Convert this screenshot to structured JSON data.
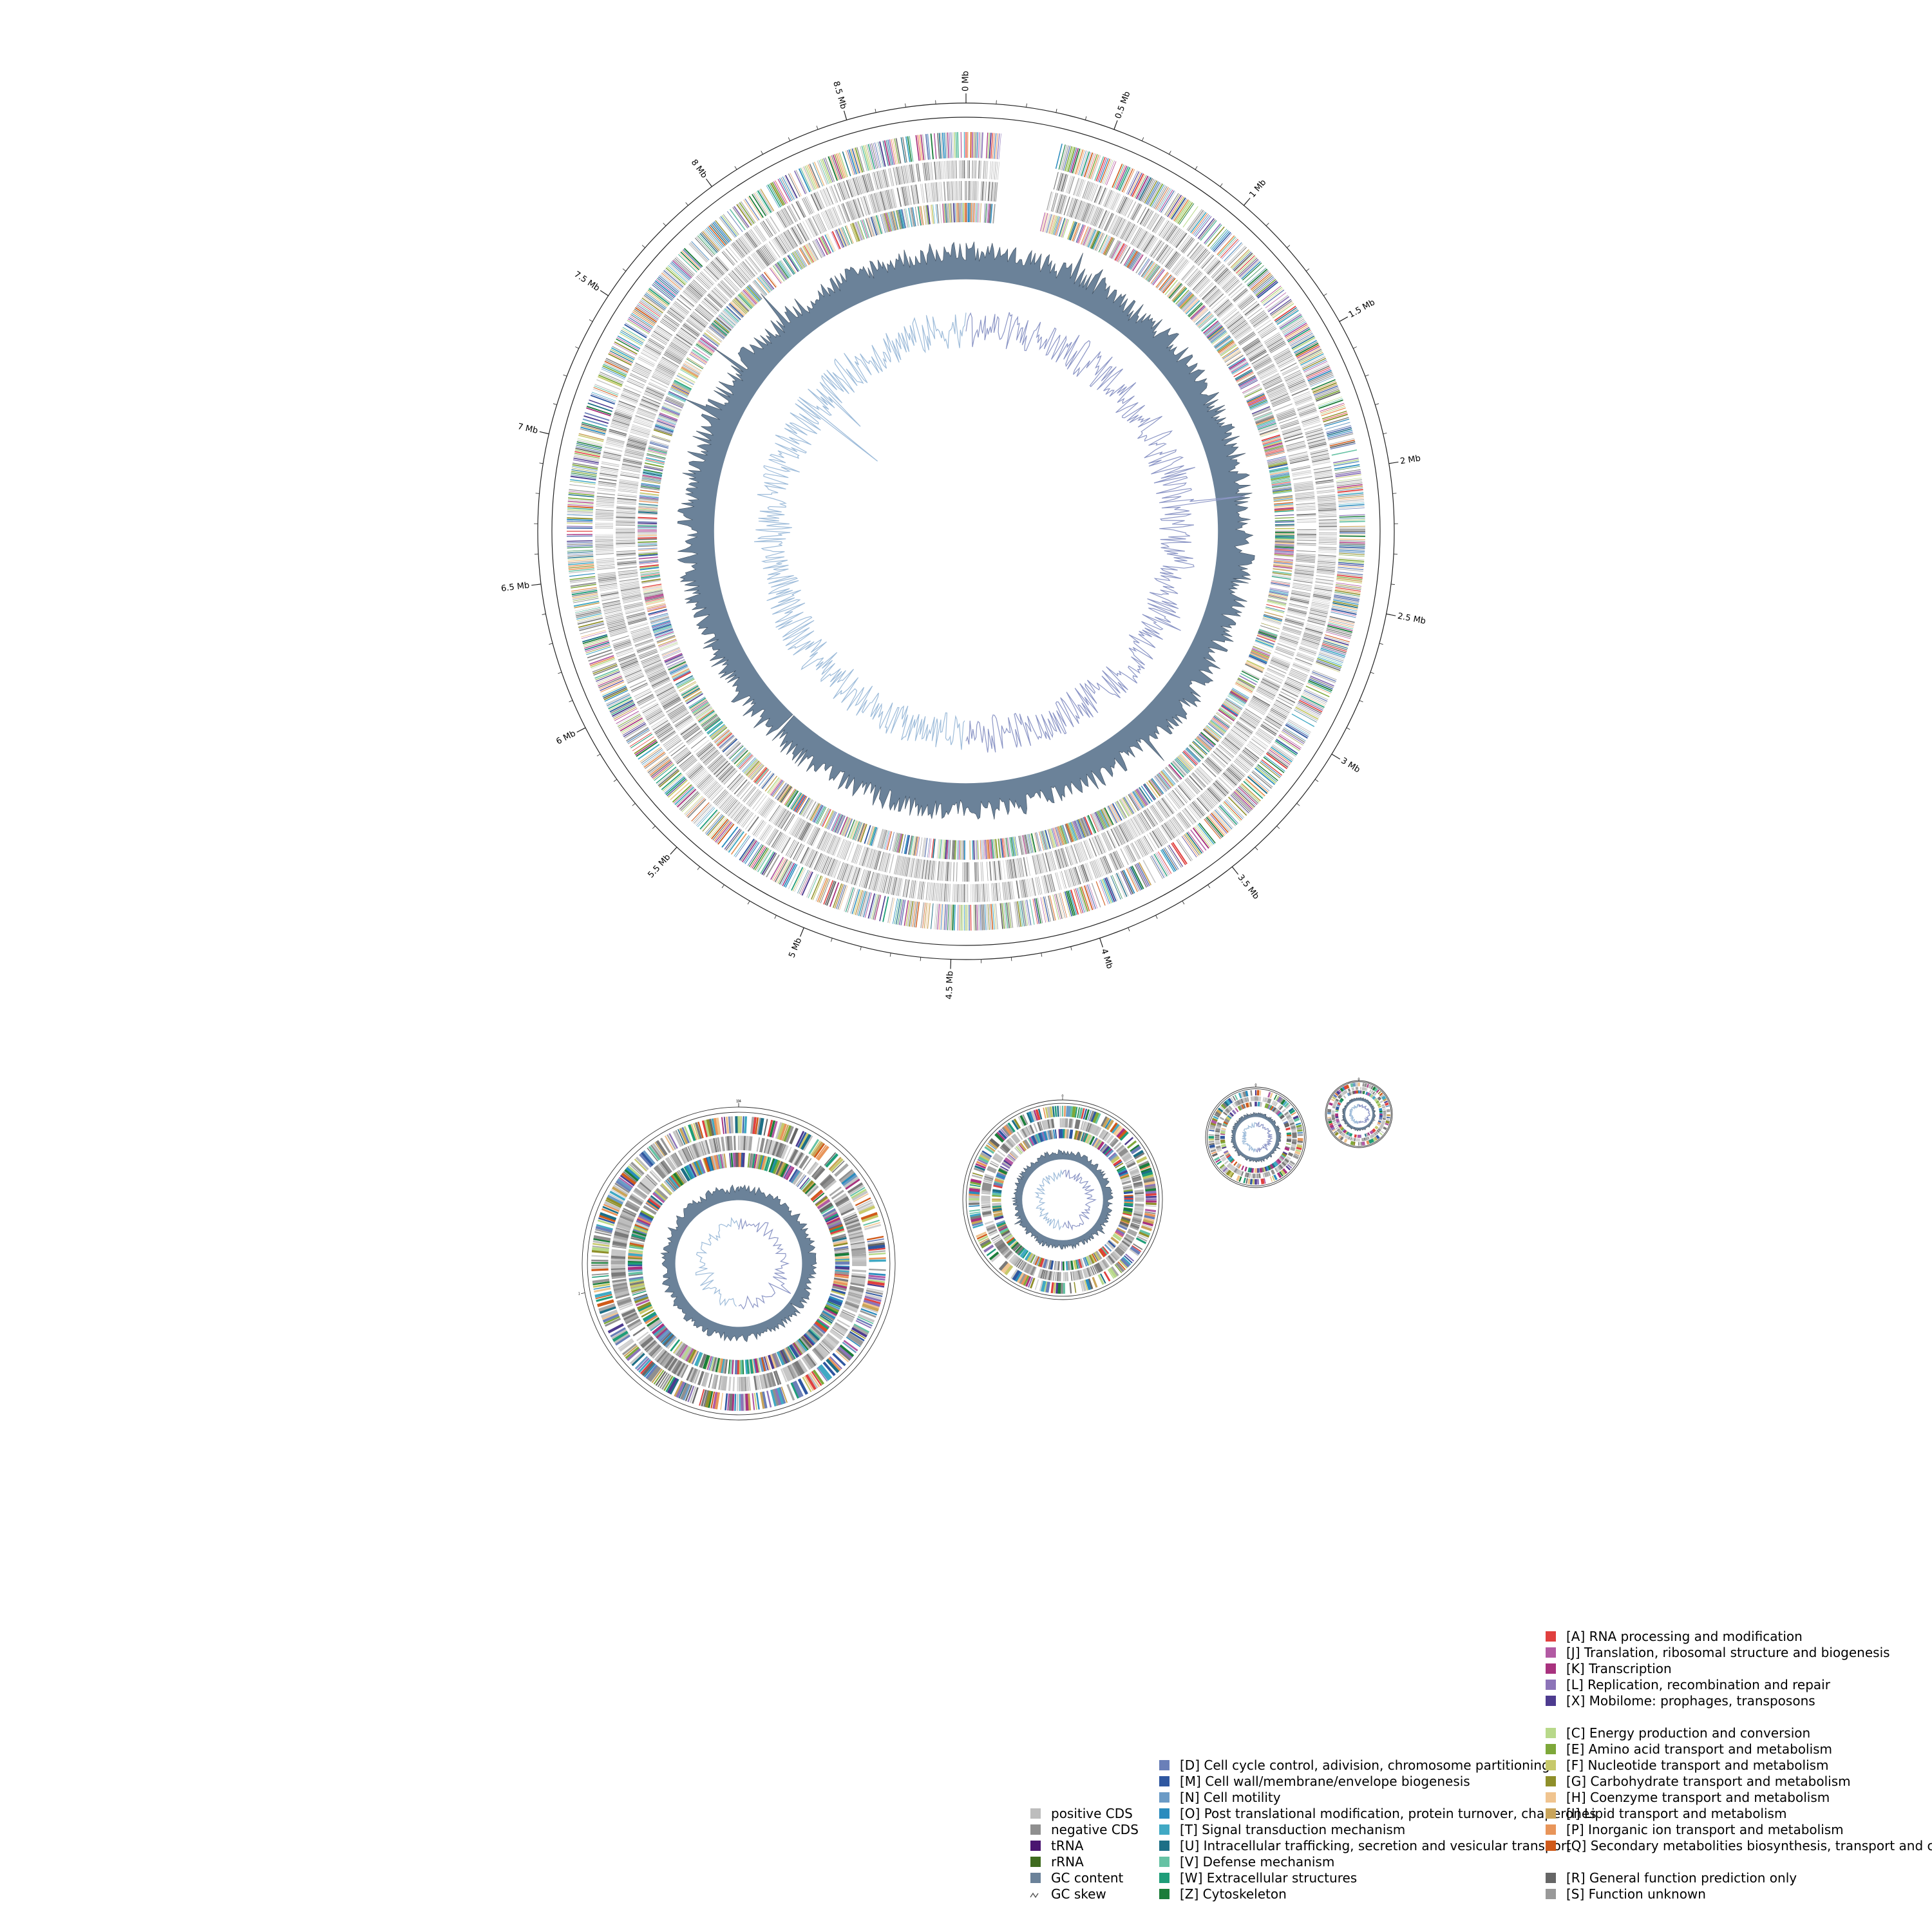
{
  "figure": {
    "main_map": {
      "genome_length_mb": 8.9,
      "tick_labels": [
        "0 Mb",
        "0.5 Mb",
        "1 Mb",
        "1.5 Mb",
        "2 Mb",
        "2.5 Mb",
        "3 Mb",
        "3.5 Mb",
        "4 Mb",
        "4.5 Mb",
        "5 Mb",
        "5.5 Mb",
        "6 Mb",
        "6.5 Mb",
        "7 Mb",
        "7.5 Mb",
        "8 Mb",
        "8.5 Mb"
      ],
      "tick_values_mb": [
        0,
        0.5,
        1,
        1.5,
        2,
        2.5,
        3,
        3.5,
        4,
        4.5,
        5,
        5.5,
        6,
        6.5,
        7,
        7.5,
        8,
        8.5
      ]
    },
    "small_maps": [
      {
        "tick_labels": [
          "0",
          "1",
          "1.4"
        ],
        "tick_values_fraction": [
          0,
          0.72,
          1.0
        ]
      },
      {
        "tick_labels": [
          "0"
        ],
        "tick_values_fraction": [
          0
        ]
      },
      {
        "tick_labels": [
          "0"
        ],
        "tick_values_fraction": [
          0
        ]
      },
      {
        "tick_labels": [
          "0"
        ],
        "tick_values_fraction": [
          0
        ]
      }
    ],
    "colors": {
      "positive_cds": "#bdbdbd",
      "negative_cds": "#8f8f8f",
      "trna": "#4a1570",
      "rrna": "#3f6b1f",
      "gc_content": "#6b8299",
      "gc_skew_pos": "#8c96c6",
      "gc_skew_neg": "#9ebcda"
    }
  },
  "legend": {
    "track_items": [
      {
        "label": "positive CDS",
        "color": "#bdbdbd",
        "icon": "square-swatch"
      },
      {
        "label": "negative CDS",
        "color": "#8f8f8f",
        "icon": "square-swatch"
      },
      {
        "label": "tRNA",
        "color": "#4a1570",
        "icon": "square-swatch"
      },
      {
        "label": "rRNA",
        "color": "#3f6b1f",
        "icon": "square-swatch"
      },
      {
        "label": "GC content",
        "color": "#6b8299",
        "icon": "square-swatch"
      },
      {
        "label": "GC skew",
        "color": "#555555",
        "icon": "line-glyph"
      }
    ],
    "cog_group_1": [
      {
        "label": "[D] Cell cycle control, adivision, chromosome partitioning",
        "color": "#6a7fb8"
      },
      {
        "label": "[M] Cell wall/membrane/envelope biogenesis",
        "color": "#2f57a0"
      },
      {
        "label": "[N] Cell motility",
        "color": "#6b9bc6"
      },
      {
        "label": "[O] Post translational modification, protein turnover, chaperones",
        "color": "#2b8cbe"
      },
      {
        "label": "[T] Signal transduction mechanism",
        "color": "#41a9c4"
      },
      {
        "label": "[U] Intracellular trafficking, secretion and vesicular transport",
        "color": "#1d6f86"
      },
      {
        "label": "[V] Defense mechanism",
        "color": "#66c2a4"
      },
      {
        "label": "[W] Extracellular structures",
        "color": "#1f9d79"
      },
      {
        "label": "[Z] Cytoskeleton",
        "color": "#1b7d3a"
      }
    ],
    "cog_group_2": [
      {
        "label": "[A] RNA processing and modification",
        "color": "#e0403f"
      },
      {
        "label": "[J] Translation, ribosomal structure and biogenesis",
        "color": "#b25aa3"
      },
      {
        "label": "[K] Transcription",
        "color": "#a8327e"
      },
      {
        "label": "[L] Replication, recombination and repair",
        "color": "#8c74b8"
      },
      {
        "label": "[X] Mobilome: prophages, transposons",
        "color": "#4d3b8f"
      }
    ],
    "cog_group_3": [
      {
        "label": "[C] Energy production and conversion",
        "color": "#b8d98a"
      },
      {
        "label": "[E] Amino acid transport and metabolism",
        "color": "#7ea83a"
      },
      {
        "label": "[F] Nucleotide transport and metabolism",
        "color": "#c7c96b"
      },
      {
        "label": "[G] Carbohydrate transport and metabolism",
        "color": "#8f8f2a"
      },
      {
        "label": "[H] Coenzyme transport and metabolism",
        "color": "#f0c48f"
      },
      {
        "label": "[I] Lipid transport and metabolism",
        "color": "#c9a45a"
      },
      {
        "label": "[P] Inorganic ion transport and metabolism",
        "color": "#e8955a"
      },
      {
        "label": "[Q] Secondary metabolities biosynthesis, transport and catabolism",
        "color": "#d05a1a"
      }
    ],
    "cog_group_4": [
      {
        "label": "[R] General function prediction only",
        "color": "#666666"
      },
      {
        "label": "[S] Function unknown",
        "color": "#999999"
      }
    ]
  }
}
